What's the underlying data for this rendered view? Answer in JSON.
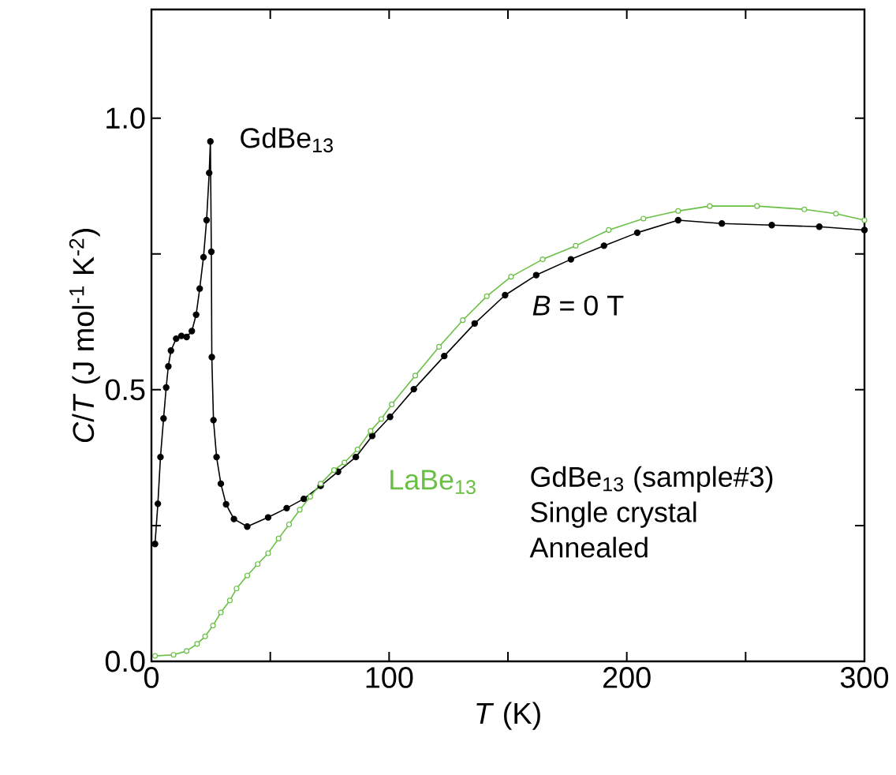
{
  "chart_data": {
    "type": "line",
    "xlabel": "*T* (K)",
    "ylabel": "*C*/*T* (J mol$^{-1}$ K$^{-2}$)",
    "xlim": [
      0,
      300
    ],
    "ylim": [
      0,
      1.2
    ],
    "xticks": [
      0,
      {
        "value": 50,
        "label": null
      },
      100,
      {
        "value": 150,
        "label": null
      },
      200,
      {
        "value": 250,
        "label": null
      },
      300
    ],
    "yticks": [
      {
        "value": 0,
        "label": "0.0"
      },
      {
        "value": 0.25,
        "label": null
      },
      {
        "value": 0.5,
        "label": "0.5"
      },
      {
        "value": 0.75,
        "label": null
      },
      {
        "value": 1.0,
        "label": "1.0"
      }
    ],
    "marker": "circle",
    "legend": false,
    "grid": false,
    "annotations": [
      "*B* = 0 T",
      "GdBe$_{13}$ (sample#3)",
      "Single crystal",
      "Annealed"
    ],
    "series": [
      {
        "name": "GdBe$_{13}$",
        "color": "#000000",
        "x": [
          1.5,
          2.7,
          3.8,
          5.1,
          6.2,
          7.1,
          8.2,
          10.4,
          12.6,
          14.8,
          17,
          18.8,
          20.3,
          21.9,
          23.2,
          24.3,
          24.8,
          25.2,
          25.4,
          26.1,
          27.4,
          29.2,
          31.4,
          34.7,
          40.3,
          49.1,
          56.9,
          64.1,
          71.2,
          78.5,
          86,
          92.9,
          100.4,
          110.4,
          123.2,
          136,
          148.8,
          161.9,
          176.5,
          190.4,
          204.4,
          221.6,
          240,
          261,
          281,
          300
        ],
        "values": [
          0.216,
          0.29,
          0.376,
          0.447,
          0.504,
          0.543,
          0.572,
          0.594,
          0.599,
          0.597,
          0.608,
          0.638,
          0.686,
          0.744,
          0.812,
          0.899,
          0.957,
          0.754,
          0.56,
          0.444,
          0.376,
          0.327,
          0.289,
          0.262,
          0.248,
          0.265,
          0.282,
          0.299,
          0.323,
          0.349,
          0.376,
          0.415,
          0.45,
          0.501,
          0.562,
          0.622,
          0.674,
          0.711,
          0.74,
          0.765,
          0.789,
          0.812,
          0.806,
          0.803,
          0.8,
          0.794
        ]
      },
      {
        "name": "LaBe$_{13}$",
        "color": "#6abf45",
        "x": [
          1.5,
          9.3,
          14.8,
          19.2,
          22.6,
          25.9,
          29.2,
          33,
          35.8,
          40.3,
          44.7,
          49.1,
          53.5,
          57.9,
          62.4,
          66.8,
          71.2,
          76.8,
          81.2,
          86.7,
          92.2,
          96.7,
          101.1,
          111,
          121,
          131,
          141.1,
          151.3,
          164.6,
          178.5,
          192.4,
          207,
          221.6,
          234.9,
          254.8,
          274.7,
          288,
          300
        ],
        "values": [
          0.01,
          0.012,
          0.019,
          0.032,
          0.046,
          0.066,
          0.09,
          0.112,
          0.134,
          0.158,
          0.179,
          0.199,
          0.226,
          0.252,
          0.279,
          0.303,
          0.327,
          0.352,
          0.366,
          0.39,
          0.424,
          0.446,
          0.473,
          0.526,
          0.579,
          0.628,
          0.672,
          0.708,
          0.74,
          0.765,
          0.794,
          0.815,
          0.829,
          0.838,
          0.838,
          0.832,
          0.824,
          0.812
        ]
      }
    ]
  }
}
